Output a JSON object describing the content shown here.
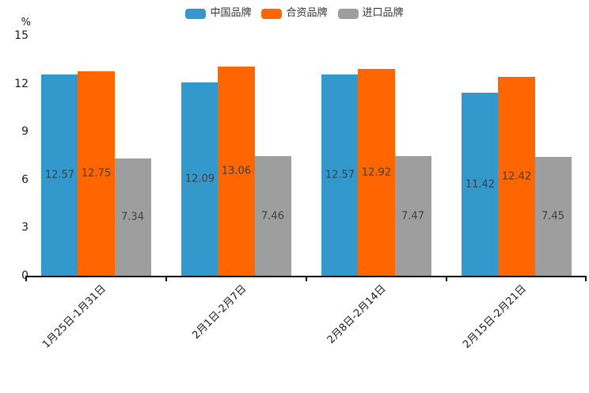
{
  "chart_data": {
    "type": "bar",
    "title": "",
    "legend_position": "top",
    "categories": [
      "1月25日-1月31日",
      "2月1日-2月7日",
      "2月8日-2月14日",
      "2月15日-2月21日"
    ],
    "series": [
      {
        "name": "中国品牌",
        "color": "#3398CC",
        "values": [
          12.57,
          12.09,
          12.57,
          11.42
        ]
      },
      {
        "name": "合资品牌",
        "color": "#FF6600",
        "values": [
          12.75,
          13.06,
          12.92,
          12.42
        ]
      },
      {
        "name": "进口品牌",
        "color": "#9E9E9E",
        "values": [
          7.34,
          7.46,
          7.47,
          7.45
        ]
      }
    ],
    "value_labels": {
      "position": "inside-center",
      "decimals": 2,
      "color": "#404040"
    },
    "y_axis": {
      "unit": "%",
      "min": 0,
      "max": 15,
      "tick_step": 3,
      "ticks": [
        0,
        3,
        6,
        9,
        12,
        15
      ]
    },
    "grid": false
  }
}
